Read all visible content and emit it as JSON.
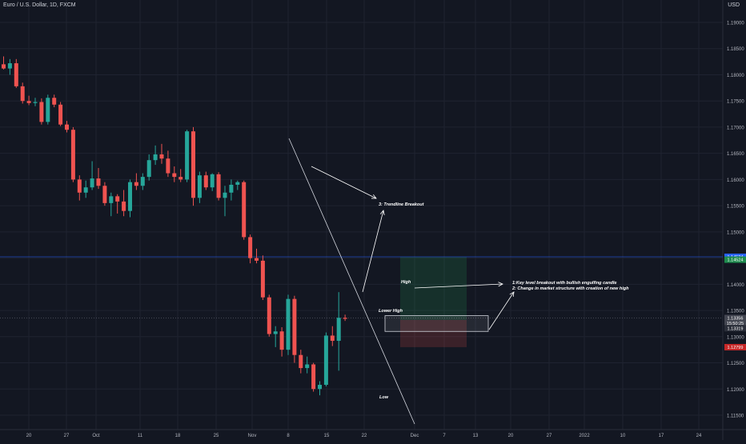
{
  "symbol_title": "Euro / U.S. Dollar, 1D, FXCM",
  "currency": "USD",
  "colors": {
    "background": "#131722",
    "bull": "#26a69a",
    "bear": "#ef5350",
    "grid": "#1f2330",
    "axis_text": "#b2b5be",
    "annotation": "#ffffff",
    "current_price_badge": "#2962ff",
    "target_badge": "#1e8c4e",
    "stop_badge": "#c62828",
    "entry_badge": "#434651"
  },
  "chart_data": {
    "type": "candlestick",
    "title": "Euro / U.S. Dollar, 1D, FXCM",
    "ylabel": "USD",
    "ylim": [
      1.112,
      1.192
    ],
    "y_ticks": [
      "1.19000",
      "1.18500",
      "1.18000",
      "1.17500",
      "1.17000",
      "1.16500",
      "1.16000",
      "1.15500",
      "1.15000",
      "1.14500",
      "1.14000",
      "1.13500",
      "1.13000",
      "1.12500",
      "1.12000",
      "1.11500"
    ],
    "x_ticks": [
      "20",
      "27",
      "Oct",
      "11",
      "18",
      "25",
      "Nov",
      "8",
      "15",
      "22",
      "Dec",
      "7",
      "13",
      "20",
      "27",
      "2022",
      "10",
      "17",
      "24"
    ],
    "candles": [
      {
        "o": 1.182,
        "h": 1.1835,
        "l": 1.181,
        "c": 1.1812
      },
      {
        "o": 1.1812,
        "h": 1.183,
        "l": 1.18,
        "c": 1.1822
      },
      {
        "o": 1.1822,
        "h": 1.183,
        "l": 1.1775,
        "c": 1.1778
      },
      {
        "o": 1.1778,
        "h": 1.1785,
        "l": 1.1745,
        "c": 1.175
      },
      {
        "o": 1.175,
        "h": 1.176,
        "l": 1.1742,
        "c": 1.1746
      },
      {
        "o": 1.1746,
        "h": 1.1756,
        "l": 1.174,
        "c": 1.1748
      },
      {
        "o": 1.1748,
        "h": 1.1755,
        "l": 1.1705,
        "c": 1.171
      },
      {
        "o": 1.171,
        "h": 1.1762,
        "l": 1.1705,
        "c": 1.1756
      },
      {
        "o": 1.1756,
        "h": 1.1762,
        "l": 1.1738,
        "c": 1.1743
      },
      {
        "o": 1.1743,
        "h": 1.1748,
        "l": 1.1702,
        "c": 1.1705
      },
      {
        "o": 1.1705,
        "h": 1.1712,
        "l": 1.169,
        "c": 1.1695
      },
      {
        "o": 1.1695,
        "h": 1.17,
        "l": 1.1595,
        "c": 1.16
      },
      {
        "o": 1.16,
        "h": 1.1608,
        "l": 1.156,
        "c": 1.1575
      },
      {
        "o": 1.1575,
        "h": 1.1598,
        "l": 1.1565,
        "c": 1.1585
      },
      {
        "o": 1.1585,
        "h": 1.1635,
        "l": 1.158,
        "c": 1.1602
      },
      {
        "o": 1.1602,
        "h": 1.1622,
        "l": 1.1582,
        "c": 1.1588
      },
      {
        "o": 1.1588,
        "h": 1.1595,
        "l": 1.155,
        "c": 1.1555
      },
      {
        "o": 1.1555,
        "h": 1.1575,
        "l": 1.153,
        "c": 1.1568
      },
      {
        "o": 1.1568,
        "h": 1.1572,
        "l": 1.1535,
        "c": 1.1558
      },
      {
        "o": 1.1558,
        "h": 1.158,
        "l": 1.153,
        "c": 1.154
      },
      {
        "o": 1.154,
        "h": 1.16,
        "l": 1.1528,
        "c": 1.1595
      },
      {
        "o": 1.1595,
        "h": 1.1612,
        "l": 1.158,
        "c": 1.1588
      },
      {
        "o": 1.1588,
        "h": 1.1612,
        "l": 1.158,
        "c": 1.1605
      },
      {
        "o": 1.1605,
        "h": 1.1648,
        "l": 1.1598,
        "c": 1.1637
      },
      {
        "o": 1.1637,
        "h": 1.1665,
        "l": 1.1628,
        "c": 1.1648
      },
      {
        "o": 1.1648,
        "h": 1.1668,
        "l": 1.163,
        "c": 1.164
      },
      {
        "o": 1.164,
        "h": 1.1655,
        "l": 1.1605,
        "c": 1.1612
      },
      {
        "o": 1.1612,
        "h": 1.1625,
        "l": 1.1595,
        "c": 1.1605
      },
      {
        "o": 1.1605,
        "h": 1.162,
        "l": 1.1595,
        "c": 1.16
      },
      {
        "o": 1.16,
        "h": 1.1695,
        "l": 1.1595,
        "c": 1.1692
      },
      {
        "o": 1.1692,
        "h": 1.17,
        "l": 1.155,
        "c": 1.1565
      },
      {
        "o": 1.1565,
        "h": 1.1615,
        "l": 1.1555,
        "c": 1.1608
      },
      {
        "o": 1.1608,
        "h": 1.1615,
        "l": 1.158,
        "c": 1.1585
      },
      {
        "o": 1.1585,
        "h": 1.1612,
        "l": 1.1578,
        "c": 1.161
      },
      {
        "o": 1.161,
        "h": 1.1614,
        "l": 1.156,
        "c": 1.1565
      },
      {
        "o": 1.1565,
        "h": 1.1588,
        "l": 1.153,
        "c": 1.1575
      },
      {
        "o": 1.1575,
        "h": 1.16,
        "l": 1.156,
        "c": 1.159
      },
      {
        "o": 1.159,
        "h": 1.1598,
        "l": 1.158,
        "c": 1.1595
      },
      {
        "o": 1.1595,
        "h": 1.1598,
        "l": 1.1485,
        "c": 1.149
      },
      {
        "o": 1.149,
        "h": 1.1495,
        "l": 1.144,
        "c": 1.145
      },
      {
        "o": 1.145,
        "h": 1.1468,
        "l": 1.144,
        "c": 1.1445
      },
      {
        "o": 1.1445,
        "h": 1.1455,
        "l": 1.137,
        "c": 1.1375
      },
      {
        "o": 1.1375,
        "h": 1.138,
        "l": 1.13,
        "c": 1.1305
      },
      {
        "o": 1.1305,
        "h": 1.132,
        "l": 1.128,
        "c": 1.131
      },
      {
        "o": 1.131,
        "h": 1.1318,
        "l": 1.1262,
        "c": 1.1275
      },
      {
        "o": 1.1275,
        "h": 1.138,
        "l": 1.1265,
        "c": 1.1372
      },
      {
        "o": 1.1372,
        "h": 1.1378,
        "l": 1.125,
        "c": 1.1265
      },
      {
        "o": 1.1265,
        "h": 1.1275,
        "l": 1.123,
        "c": 1.124
      },
      {
        "o": 1.124,
        "h": 1.1262,
        "l": 1.123,
        "c": 1.1247
      },
      {
        "o": 1.1247,
        "h": 1.125,
        "l": 1.1195,
        "c": 1.12
      },
      {
        "o": 1.12,
        "h": 1.1215,
        "l": 1.1188,
        "c": 1.1208
      },
      {
        "o": 1.1208,
        "h": 1.1308,
        "l": 1.1205,
        "c": 1.1302
      },
      {
        "o": 1.1302,
        "h": 1.132,
        "l": 1.1282,
        "c": 1.1292
      },
      {
        "o": 1.1292,
        "h": 1.1385,
        "l": 1.1235,
        "c": 1.1336
      },
      {
        "o": 1.1336,
        "h": 1.1342,
        "l": 1.133,
        "c": 1.1334
      }
    ],
    "current_price_line": 1.14524,
    "price_badges": [
      {
        "label": "1.14524",
        "value": 1.14524,
        "color": "#2962ff"
      },
      {
        "label": "1.14524",
        "value": 1.1447,
        "color": "#1e8c4e"
      },
      {
        "label": "1.13356",
        "value": 1.13356,
        "color": "#434651"
      },
      {
        "label": "15:50:25",
        "value": 1.1326,
        "color": "#434651"
      },
      {
        "label": "1.13319",
        "value": 1.1316,
        "color": "#2a2e39"
      },
      {
        "label": "1.12799",
        "value": 1.12799,
        "color": "#c62828"
      }
    ],
    "annotations": {
      "trendline_breakout": "3: Trendline Breakout",
      "high": "High",
      "lower_high": "Lower High",
      "low": "Low",
      "note_line_1": "1:Key level breakout with bullish engulfing candle",
      "note_line_2": "2: Change in market structure with creation of new high"
    },
    "position": {
      "target": 1.14524,
      "entry": 1.13319,
      "stop": 1.12799
    }
  }
}
